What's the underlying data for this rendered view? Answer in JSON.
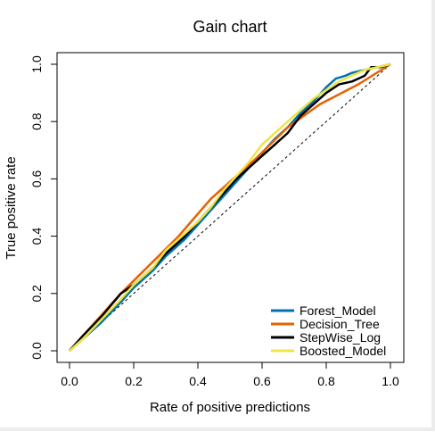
{
  "chart_data": {
    "type": "line",
    "title": "Gain chart",
    "xlabel": "Rate of positive predictions",
    "ylabel": "True positive rate",
    "xlim": [
      0,
      1
    ],
    "ylim": [
      0,
      1
    ],
    "x_ticks": [
      "0.0",
      "0.2",
      "0.4",
      "0.6",
      "0.8",
      "1.0"
    ],
    "y_ticks": [
      "0.0",
      "0.2",
      "0.4",
      "0.6",
      "0.8",
      "1.0"
    ],
    "grid": false,
    "legend_position": "bottom-right",
    "reference_line": {
      "style": "dashed",
      "points": [
        [
          0,
          0
        ],
        [
          1,
          1
        ]
      ]
    },
    "series": [
      {
        "name": "Forest_Model",
        "color": "#0072B2",
        "points": [
          [
            0,
            0
          ],
          [
            0.04,
            0.04
          ],
          [
            0.1,
            0.1
          ],
          [
            0.16,
            0.17
          ],
          [
            0.2,
            0.22
          ],
          [
            0.26,
            0.28
          ],
          [
            0.3,
            0.33
          ],
          [
            0.36,
            0.39
          ],
          [
            0.4,
            0.44
          ],
          [
            0.44,
            0.49
          ],
          [
            0.48,
            0.54
          ],
          [
            0.52,
            0.59
          ],
          [
            0.56,
            0.64
          ],
          [
            0.6,
            0.69
          ],
          [
            0.64,
            0.74
          ],
          [
            0.68,
            0.78
          ],
          [
            0.72,
            0.83
          ],
          [
            0.76,
            0.87
          ],
          [
            0.8,
            0.92
          ],
          [
            0.83,
            0.95
          ],
          [
            0.86,
            0.96
          ],
          [
            0.88,
            0.97
          ],
          [
            0.92,
            0.98
          ],
          [
            0.96,
            0.99
          ],
          [
            1,
            1
          ]
        ]
      },
      {
        "name": "Decision_Tree",
        "color": "#E66100",
        "points": [
          [
            0,
            0
          ],
          [
            0.16,
            0.2
          ],
          [
            0.34,
            0.4
          ],
          [
            0.44,
            0.53
          ],
          [
            0.58,
            0.67
          ],
          [
            0.68,
            0.78
          ],
          [
            0.78,
            0.86
          ],
          [
            0.9,
            0.93
          ],
          [
            1,
            1
          ]
        ]
      },
      {
        "name": "StepWise_Log",
        "color": "#000000",
        "points": [
          [
            0,
            0
          ],
          [
            0.04,
            0.05
          ],
          [
            0.1,
            0.12
          ],
          [
            0.16,
            0.2
          ],
          [
            0.2,
            0.23
          ],
          [
            0.26,
            0.29
          ],
          [
            0.3,
            0.34
          ],
          [
            0.36,
            0.4
          ],
          [
            0.4,
            0.45
          ],
          [
            0.44,
            0.5
          ],
          [
            0.48,
            0.55
          ],
          [
            0.52,
            0.6
          ],
          [
            0.56,
            0.64
          ],
          [
            0.6,
            0.68
          ],
          [
            0.64,
            0.72
          ],
          [
            0.68,
            0.76
          ],
          [
            0.72,
            0.82
          ],
          [
            0.76,
            0.86
          ],
          [
            0.8,
            0.9
          ],
          [
            0.84,
            0.93
          ],
          [
            0.88,
            0.94
          ],
          [
            0.9,
            0.95
          ],
          [
            0.92,
            0.96
          ],
          [
            0.94,
            0.99
          ],
          [
            0.97,
            0.99
          ],
          [
            1,
            1
          ]
        ]
      },
      {
        "name": "Boosted_Model",
        "color": "#F0E442",
        "points": [
          [
            0,
            0
          ],
          [
            0.04,
            0.04
          ],
          [
            0.1,
            0.11
          ],
          [
            0.16,
            0.18
          ],
          [
            0.2,
            0.23
          ],
          [
            0.26,
            0.29
          ],
          [
            0.3,
            0.35
          ],
          [
            0.36,
            0.41
          ],
          [
            0.4,
            0.45
          ],
          [
            0.44,
            0.5
          ],
          [
            0.48,
            0.56
          ],
          [
            0.52,
            0.61
          ],
          [
            0.56,
            0.66
          ],
          [
            0.6,
            0.72
          ],
          [
            0.64,
            0.76
          ],
          [
            0.68,
            0.8
          ],
          [
            0.72,
            0.84
          ],
          [
            0.76,
            0.88
          ],
          [
            0.8,
            0.91
          ],
          [
            0.84,
            0.94
          ],
          [
            0.88,
            0.96
          ],
          [
            0.92,
            0.98
          ],
          [
            0.96,
            0.99
          ],
          [
            1,
            1
          ]
        ]
      }
    ]
  }
}
